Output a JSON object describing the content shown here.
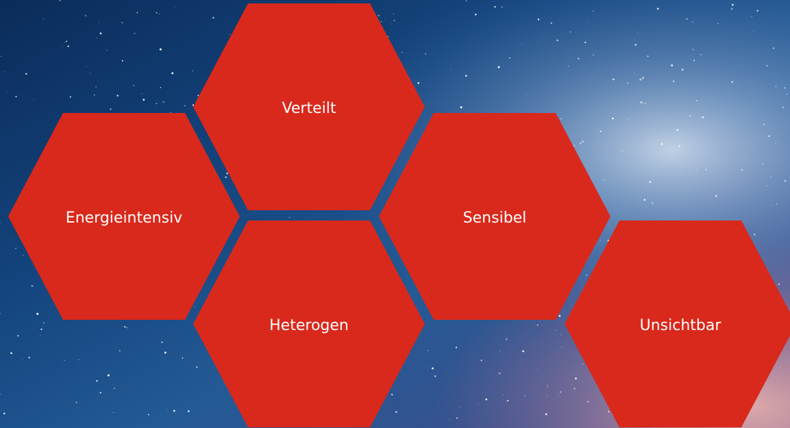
{
  "hexagons": [
    {
      "label": "Verteilt"
    },
    {
      "label": "Energieintensiv"
    },
    {
      "label": "Heterogen"
    },
    {
      "label": "Sensibel"
    },
    {
      "label": "Unsichtbar"
    }
  ]
}
